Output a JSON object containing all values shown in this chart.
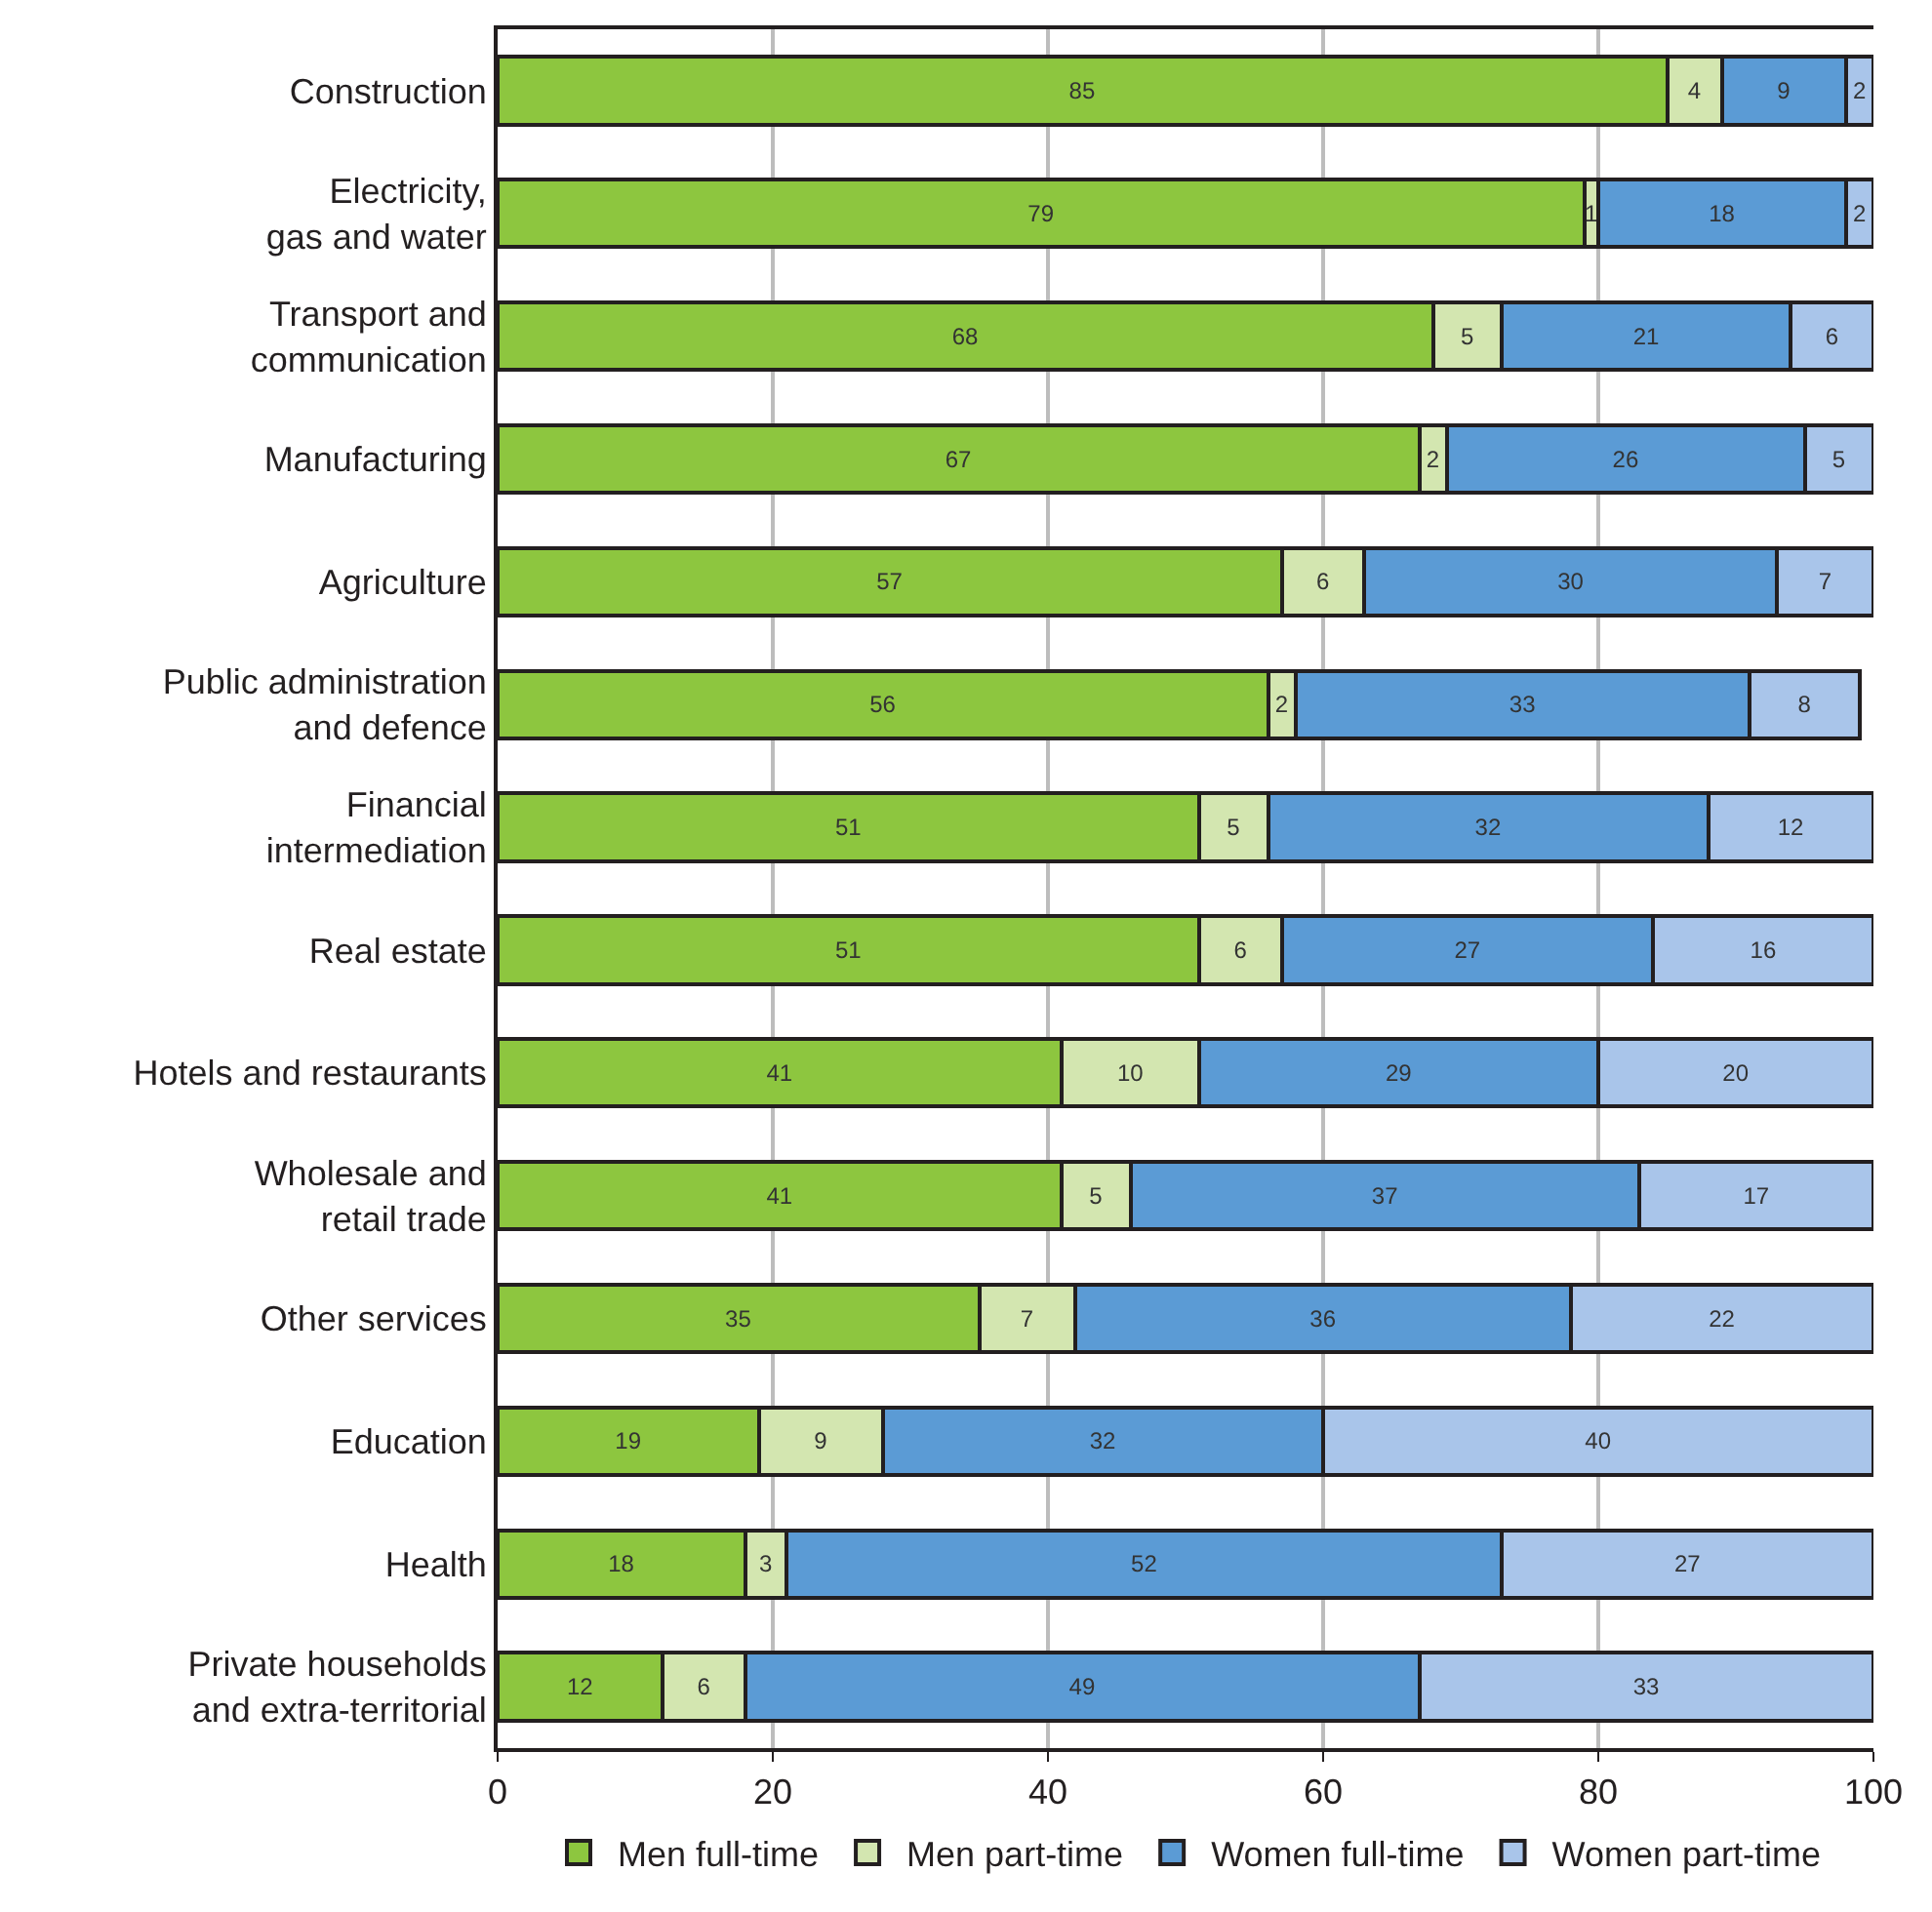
{
  "chart_data": {
    "type": "bar",
    "orientation": "horizontal",
    "stacked": true,
    "data_labels": true,
    "categories": [
      "Construction",
      "Electricity,\ngas and water",
      "Transport and\ncommunication",
      "Manufacturing",
      "Agriculture",
      "Public administration\nand defence",
      "Financial\nintermediation",
      "Real estate",
      "Hotels and restaurants",
      "Wholesale and\nretail trade",
      "Other services",
      "Education",
      "Health",
      "Private households\nand extra-territorial"
    ],
    "series": [
      {
        "name": "Men full-time",
        "color": "#8dc63f",
        "values": [
          85,
          79,
          68,
          67,
          57,
          56,
          51,
          51,
          41,
          41,
          35,
          19,
          18,
          12
        ]
      },
      {
        "name": "Men part-time",
        "color": "#d3e6b0",
        "values": [
          4,
          1,
          5,
          2,
          6,
          2,
          5,
          6,
          10,
          5,
          7,
          9,
          3,
          6
        ]
      },
      {
        "name": "Women full-time",
        "color": "#5b9bd5",
        "values": [
          9,
          18,
          21,
          26,
          30,
          33,
          32,
          27,
          29,
          37,
          36,
          32,
          52,
          49
        ]
      },
      {
        "name": "Women part-time",
        "color": "#a9c5ea",
        "values": [
          2,
          2,
          6,
          5,
          7,
          8,
          12,
          16,
          20,
          17,
          22,
          40,
          27,
          33
        ]
      }
    ],
    "xlim": [
      0,
      100
    ],
    "xticks": [
      0,
      20,
      40,
      60,
      80,
      100
    ],
    "grid": "x",
    "legend": "bottom"
  }
}
